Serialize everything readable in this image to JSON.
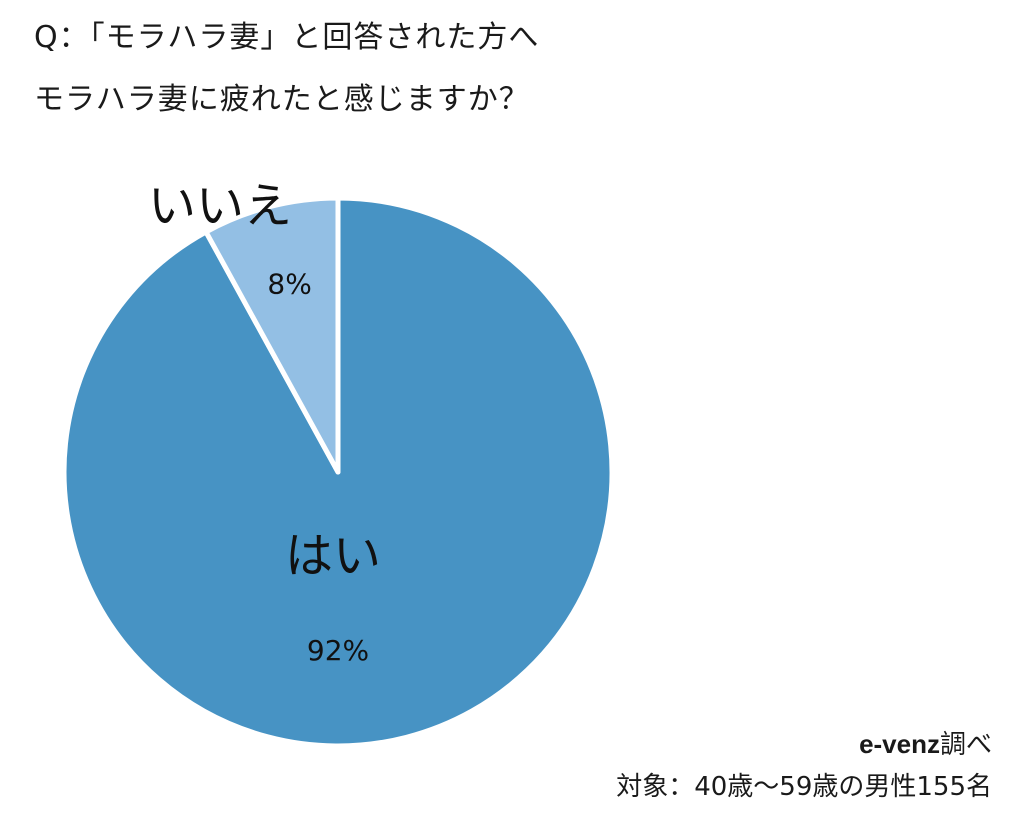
{
  "title": {
    "line1": "Q：「モラハラ妻」と回答された方へ",
    "line2": "モラハラ妻に疲れたと感じますか？"
  },
  "chart_data": {
    "type": "pie",
    "start_angle_deg": 0,
    "direction": "clockwise",
    "slices": [
      {
        "label": "はい",
        "value": 92,
        "value_label": "92%",
        "color": "#4793c4"
      },
      {
        "label": "いいえ",
        "value": 8,
        "value_label": "8%",
        "color": "#93bfe4"
      }
    ],
    "separator_color": "#ffffff"
  },
  "footer": {
    "source_brand": "e-venz",
    "source_suffix": "調べ",
    "target": "対象：40歳〜59歳の男性155名"
  }
}
